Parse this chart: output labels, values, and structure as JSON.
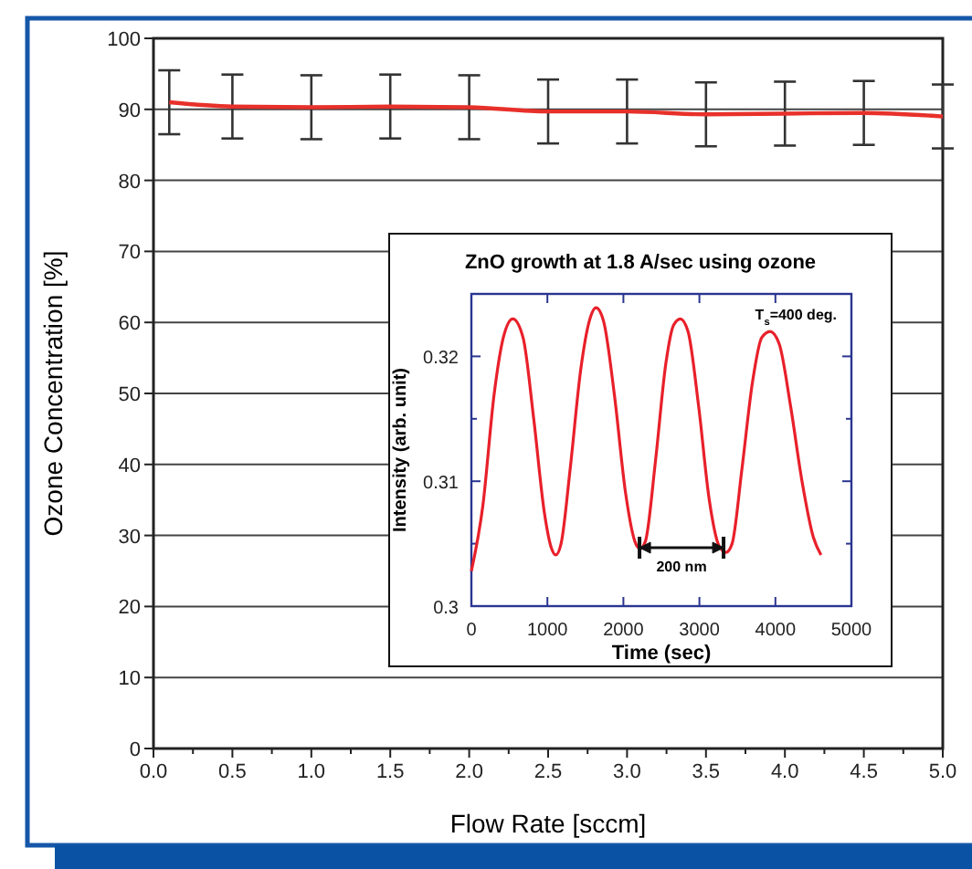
{
  "chart_data": [
    {
      "type": "line",
      "xlabel": "Flow Rate [sccm]",
      "ylabel": "Ozone Concentration [%]",
      "x": [
        0.1,
        0.5,
        1.0,
        1.5,
        2.0,
        2.5,
        3.0,
        3.5,
        4.0,
        4.5,
        5.0
      ],
      "series": [
        {
          "color": "#e8302a",
          "values": [
            91.0,
            90.4,
            90.3,
            90.4,
            90.3,
            89.7,
            89.7,
            89.3,
            89.4,
            89.5,
            89.0
          ],
          "errors": [
            4.5,
            4.5,
            4.5,
            4.5,
            4.5,
            4.5,
            4.5,
            4.5,
            4.5,
            4.5,
            4.5
          ]
        }
      ],
      "xlim": [
        0,
        5
      ],
      "ylim": [
        0,
        100
      ],
      "xticks": [
        {
          "value": 0,
          "label": "0.0"
        },
        {
          "value": 0.25,
          "label": null
        },
        {
          "value": 0.5,
          "label": "0.5"
        },
        {
          "value": 0.75,
          "label": null
        },
        {
          "value": 1,
          "label": "1.0"
        },
        {
          "value": 1.25,
          "label": null
        },
        {
          "value": 1.5,
          "label": "1.5"
        },
        {
          "value": 1.75,
          "label": null
        },
        {
          "value": 2,
          "label": "2.0"
        },
        {
          "value": 2.25,
          "label": null
        },
        {
          "value": 2.5,
          "label": "2.5"
        },
        {
          "value": 2.75,
          "label": null
        },
        {
          "value": 3,
          "label": "3.0"
        },
        {
          "value": 3.25,
          "label": null
        },
        {
          "value": 3.5,
          "label": "3.5"
        },
        {
          "value": 3.75,
          "label": null
        },
        {
          "value": 4,
          "label": "4.0"
        },
        {
          "value": 4.25,
          "label": null
        },
        {
          "value": 4.5,
          "label": "4.5"
        },
        {
          "value": 4.75,
          "label": null
        },
        {
          "value": 5,
          "label": "5.0"
        }
      ],
      "yticks": [
        0,
        10,
        20,
        30,
        40,
        50,
        60,
        70,
        80,
        90,
        100
      ],
      "grid": "y"
    },
    {
      "type": "line",
      "title": "ZnO growth at 1.8 A/sec using ozone",
      "xlabel": "Time (sec)",
      "ylabel": "Intensity (arb. unit)",
      "x": [
        0,
        150,
        300,
        420,
        545,
        680,
        820,
        960,
        1050,
        1110,
        1180,
        1300,
        1440,
        1550,
        1640,
        1740,
        1880,
        2030,
        2150,
        2220,
        2290,
        2420,
        2560,
        2660,
        2750,
        2850,
        2990,
        3130,
        3260,
        3350,
        3430,
        3560,
        3700,
        3820,
        3930,
        4050,
        4200,
        4350,
        4500,
        4600
      ],
      "series": [
        {
          "color": "#e8202a",
          "values": [
            0.3028,
            0.308,
            0.317,
            0.3215,
            0.323,
            0.3215,
            0.315,
            0.3075,
            0.3047,
            0.3041,
            0.305,
            0.311,
            0.319,
            0.3228,
            0.3239,
            0.3228,
            0.317,
            0.309,
            0.3052,
            0.3046,
            0.3052,
            0.3115,
            0.3195,
            0.3225,
            0.323,
            0.322,
            0.316,
            0.3085,
            0.3048,
            0.3043,
            0.305,
            0.311,
            0.318,
            0.3215,
            0.322,
            0.321,
            0.316,
            0.31,
            0.3055,
            0.3041
          ]
        }
      ],
      "xlim": [
        0,
        5000
      ],
      "ylim": [
        0.3,
        0.325
      ],
      "xticks": [
        0,
        1000,
        2000,
        3000,
        4000,
        5000
      ],
      "yticks": [
        0.3,
        {
          "value": 0.305,
          "label": null
        },
        0.31,
        {
          "value": 0.315,
          "label": null
        },
        0.32
      ],
      "annotations": [
        "T$_{s}$=400 deg.",
        "200 nm"
      ]
    }
  ]
}
